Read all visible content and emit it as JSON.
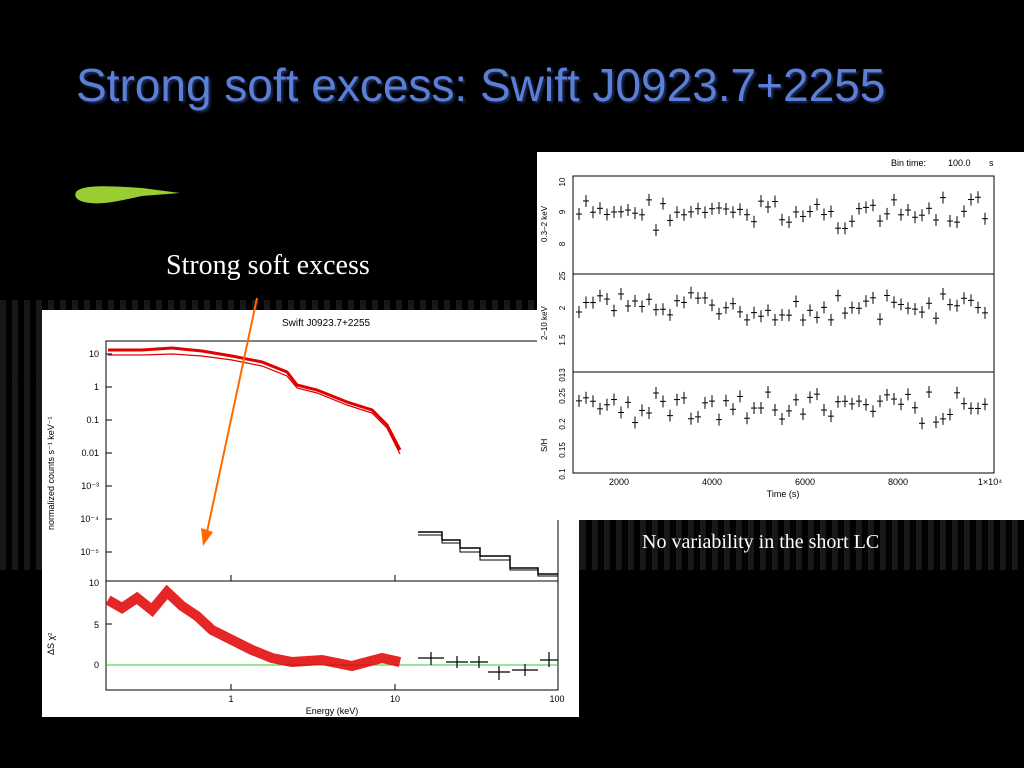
{
  "slide": {
    "title": "Strong soft excess: Swift J0923.7+2255",
    "caption_left": "Strong soft excess",
    "caption_right": "No variability in the short LC",
    "colors": {
      "title": "#5b7fd6",
      "accent_brush": "#9acd32",
      "arrow": "#ff6a00"
    }
  },
  "spectrum": {
    "title": "Swift J0923.7+2255",
    "ylabel": "normalized counts s⁻¹ keV⁻¹",
    "yticks": [
      "10",
      "1",
      "0.1",
      "0.01",
      "10⁻³",
      "10⁻⁴",
      "10⁻⁵"
    ],
    "residual_ylabel": "ΔS χ²",
    "residual_yticks": [
      "10",
      "5",
      "0"
    ],
    "xticks": [
      "1",
      "10",
      "100"
    ],
    "xlabel": "Energy (keV)",
    "colors": {
      "xrt": "#e00000",
      "bat": "#000000",
      "zero_line": "#33cc33"
    }
  },
  "lightcurve": {
    "bin_label": "Bin time:",
    "bin_value": "100.0",
    "bin_unit": "s",
    "panel1": {
      "label": "0.3–2 keV",
      "ticks": [
        "10",
        "9",
        "8"
      ]
    },
    "panel2": {
      "label": "2–10 keV",
      "ticks": [
        "25",
        "2",
        "1.5"
      ]
    },
    "panel3": {
      "label": "S/H",
      "ticks": [
        "0.25",
        "0.2",
        "0.15",
        "0.1"
      ],
      "top_tick": "013"
    },
    "xticks": [
      "2000",
      "4000",
      "6000",
      "8000",
      "1×10⁴"
    ],
    "xlabel": "Time (s)"
  }
}
